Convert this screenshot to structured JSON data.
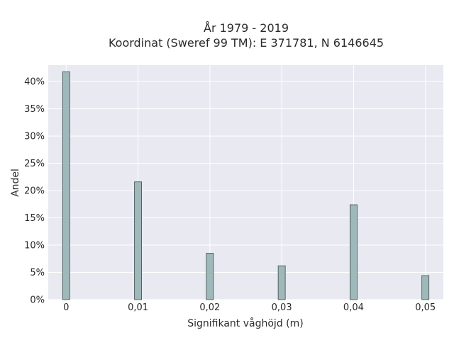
{
  "chart_data": {
    "type": "bar",
    "title": "År 1979 - 2019",
    "subtitle": "Koordinat (Sweref 99 TM): E 371781, N 6146645",
    "xlabel": "Signifikant våghöjd (m)",
    "ylabel": "Andel",
    "x": [
      0,
      0.01,
      0.02,
      0.03,
      0.04,
      0.05
    ],
    "values": [
      41.8,
      21.6,
      8.5,
      6.2,
      17.4,
      4.4
    ],
    "value_unit": "%",
    "xlim": [
      -0.0025,
      0.0525
    ],
    "ylim": [
      0,
      43
    ],
    "x_ticks": [
      0,
      0.01,
      0.02,
      0.03,
      0.04,
      0.05
    ],
    "x_tick_labels": [
      "0",
      "0,01",
      "0,02",
      "0,03",
      "0,04",
      "0,05"
    ],
    "y_ticks": [
      0,
      5,
      10,
      15,
      20,
      25,
      30,
      35,
      40
    ],
    "y_tick_labels": [
      "0%",
      "5%",
      "10%",
      "15%",
      "20%",
      "25%",
      "30%",
      "35%",
      "40%"
    ],
    "grid": true,
    "colors": {
      "bar_fill": "#9fb8b9",
      "bar_stroke": "#3d4a4a",
      "plot_background": "#e9e9f1",
      "grid": "#ffffff"
    }
  }
}
